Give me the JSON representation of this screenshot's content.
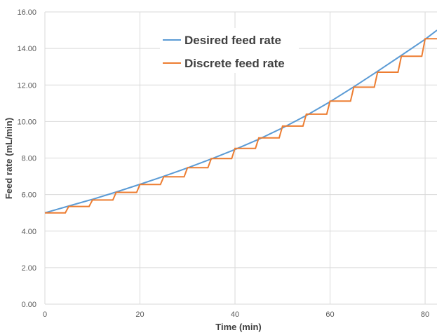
{
  "chart_data": {
    "type": "line",
    "xlabel": "Time (min)",
    "ylabel": "Feed rate (mL/min)",
    "xlim": [
      0,
      82.5
    ],
    "ylim": [
      0,
      16
    ],
    "x_ticks": [
      "0",
      "20",
      "40",
      "60",
      "80"
    ],
    "y_ticks": [
      "0.00",
      "2.00",
      "4.00",
      "6.00",
      "8.00",
      "10.00",
      "12.00",
      "14.00",
      "16.00"
    ],
    "grid": true,
    "legend_position": "top-center",
    "series": [
      {
        "name": "Desired feed rate",
        "color": "#5B9BD5",
        "style": "line",
        "x": [
          0,
          5,
          10,
          15,
          20,
          25,
          30,
          35,
          40,
          45,
          50,
          55,
          60,
          65,
          70,
          75,
          80,
          82.5
        ],
        "y": [
          5.0,
          5.37,
          5.74,
          6.14,
          6.56,
          7.0,
          7.46,
          7.95,
          8.47,
          9.03,
          9.65,
          10.33,
          11.08,
          11.9,
          12.75,
          13.62,
          14.5,
          15.0
        ]
      },
      {
        "name": "Discrete feed rate",
        "color": "#ED7D31",
        "style": "step",
        "step_width": 5,
        "ramp": 0.7,
        "x": [
          0,
          5,
          10,
          15,
          20,
          25,
          30,
          35,
          40,
          45,
          50,
          55,
          60,
          65,
          70,
          75,
          80
        ],
        "y": [
          5.0,
          5.35,
          5.7,
          6.12,
          6.55,
          6.97,
          7.47,
          7.97,
          8.53,
          9.1,
          9.75,
          10.4,
          11.12,
          11.88,
          12.7,
          13.57,
          14.53
        ]
      }
    ]
  }
}
